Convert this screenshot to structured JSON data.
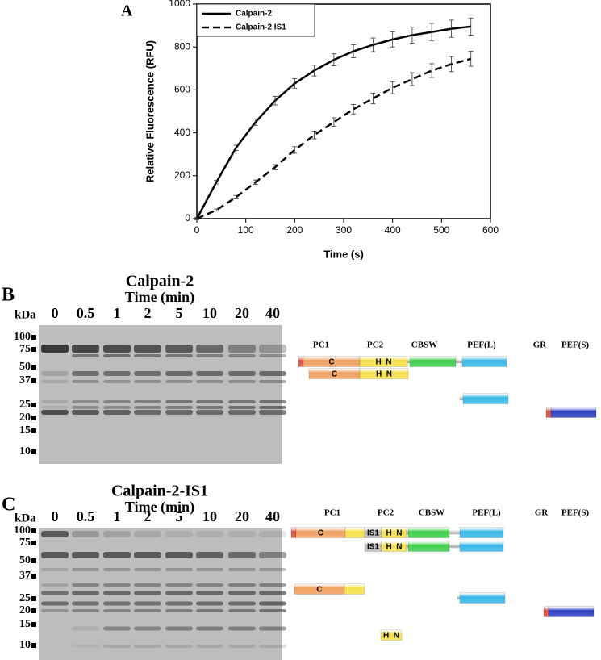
{
  "chart_data": {
    "type": "line",
    "title": "A",
    "x_label": "Time (s)",
    "y_label": "Relative Fluorescence (RFU)",
    "x": [
      0,
      40,
      80,
      120,
      160,
      200,
      240,
      280,
      320,
      360,
      400,
      440,
      480,
      520,
      560
    ],
    "series": [
      {
        "name": "Calpain-2",
        "color": "#000000",
        "dash": "solid",
        "values": [
          0,
          170,
          330,
          450,
          550,
          630,
          690,
          740,
          780,
          810,
          835,
          855,
          870,
          885,
          895
        ],
        "errors": [
          5,
          8,
          12,
          15,
          20,
          22,
          25,
          28,
          30,
          32,
          35,
          38,
          40,
          40,
          40
        ]
      },
      {
        "name": "Calpain-2 IS1",
        "color": "#000000",
        "dash": "dashed",
        "values": [
          0,
          40,
          100,
          170,
          240,
          320,
          390,
          450,
          510,
          560,
          610,
          650,
          690,
          720,
          745
        ],
        "errors": [
          2,
          5,
          8,
          10,
          12,
          15,
          18,
          20,
          22,
          25,
          28,
          30,
          32,
          35,
          35
        ]
      }
    ],
    "xlim": [
      0,
      600
    ],
    "ylim": [
      0,
      1000
    ],
    "xticks": [
      0,
      100,
      200,
      300,
      400,
      500,
      600
    ],
    "yticks": [
      0,
      200,
      400,
      600,
      800,
      1000
    ],
    "grid": false,
    "legend": "upper left"
  },
  "gels": [
    {
      "label": "B",
      "title": "Calpain-2",
      "subtitle": "Time (min)",
      "unit": "kDa",
      "lanes": [
        "0",
        "0.5",
        "1",
        "2",
        "5",
        "10",
        "20",
        "40"
      ],
      "markers": [
        "100",
        "75",
        "50",
        "37",
        "25",
        "20",
        "15",
        "10"
      ],
      "domains": [
        "PC1",
        "PC2",
        "CBSW",
        "PEF(L)",
        "GR",
        "PEF(S)"
      ],
      "fragment_labels": [
        "C",
        "H  N",
        "C",
        "H  N"
      ]
    },
    {
      "label": "C",
      "title": "Calpain-2-IS1",
      "subtitle": "Time (min)",
      "unit": "kDa",
      "lanes": [
        "0",
        "0.5",
        "1",
        "2",
        "5",
        "10",
        "20",
        "40"
      ],
      "markers": [
        "100",
        "75",
        "50",
        "37",
        "25",
        "20",
        "15",
        "10"
      ],
      "domains": [
        "PC1",
        "PC2",
        "CBSW",
        "PEF(L)",
        "GR",
        "PEF(S)"
      ],
      "fragment_labels": [
        "C",
        "IS1",
        "H  N",
        "IS1",
        "H  N",
        "C",
        "H  N"
      ]
    }
  ]
}
